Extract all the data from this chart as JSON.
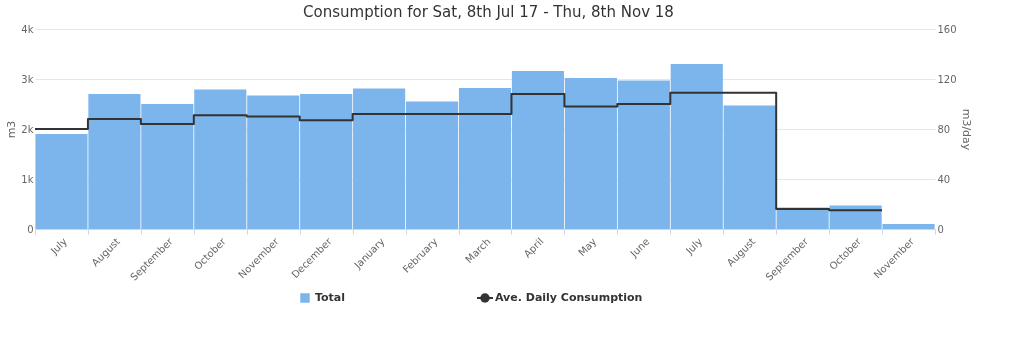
{
  "chart_data": {
    "type": "bar",
    "title": "Consumption for Sat, 8th Jul 17 - Thu, 8th Nov 18",
    "ylabel": "m3",
    "y2label": "m3/day",
    "categories": [
      "July",
      "August",
      "September",
      "October",
      "November",
      "December",
      "January",
      "February",
      "March",
      "April",
      "May",
      "June",
      "July",
      "August",
      "September",
      "October",
      "November"
    ],
    "series": [
      {
        "name": "Total",
        "color": "#7cb5ec",
        "values": [
          1900,
          2700,
          2500,
          2790,
          2670,
          2700,
          2810,
          2550,
          2820,
          3160,
          3020,
          2970,
          3300,
          2470,
          430,
          470,
          100
        ]
      },
      {
        "name": "Ave. Daily Consumption",
        "type": "step",
        "axis": "y2",
        "color": "#333333",
        "values": [
          80,
          88,
          84,
          91,
          90,
          87,
          92,
          92,
          92,
          108,
          98,
          100,
          109,
          109,
          16,
          15,
          15
        ]
      }
    ],
    "ylim": [
      0,
      4000
    ],
    "yticks": [
      0,
      {
        "value": 1000,
        "label": "1k"
      },
      {
        "value": 2000,
        "label": "2k"
      },
      {
        "value": 3000,
        "label": "3k"
      },
      {
        "value": 4000,
        "label": "4k"
      }
    ],
    "y2lim": [
      0,
      160
    ],
    "y2ticks": [
      0,
      40,
      80,
      120,
      160
    ],
    "grid": "y",
    "legend": "bottom",
    "marker": "none",
    "line_style": "solid"
  }
}
